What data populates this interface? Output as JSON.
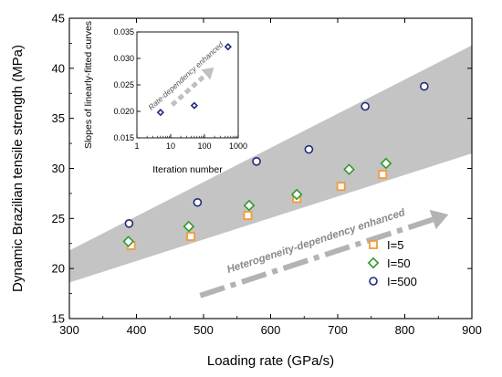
{
  "chart_data": [
    {
      "type": "scatter",
      "title": "",
      "xlabel": "Loading rate (GPa/s)",
      "ylabel": "Dynamic Brazilian tensile strength (MPa)",
      "xlim": [
        300,
        900
      ],
      "ylim": [
        15,
        45
      ],
      "x_ticks": [
        "300",
        "400",
        "500",
        "600",
        "700",
        "800",
        "900"
      ],
      "y_ticks": [
        "15",
        "20",
        "25",
        "30",
        "35",
        "40",
        "45"
      ],
      "grid": false,
      "legend_position": "bottom-right",
      "series": [
        {
          "name": "I=5",
          "marker": "square",
          "color": "#f39a3a",
          "points": [
            [
              392,
              22.3
            ],
            [
              481,
              23.2
            ],
            [
              566,
              25.3
            ],
            [
              639,
              27.0
            ],
            [
              705,
              28.2
            ],
            [
              767,
              29.4
            ]
          ]
        },
        {
          "name": "I=50",
          "marker": "diamond",
          "color": "#2f9a2f",
          "points": [
            [
              388,
              22.7
            ],
            [
              478,
              24.2
            ],
            [
              568,
              26.3
            ],
            [
              639,
              27.4
            ],
            [
              717,
              29.9
            ],
            [
              772,
              30.5
            ]
          ]
        },
        {
          "name": "I=500",
          "marker": "circle",
          "color": "#1f2a7a",
          "points": [
            [
              389,
              24.5
            ],
            [
              491,
              26.6
            ],
            [
              579,
              30.7
            ],
            [
              657,
              31.9
            ],
            [
              741,
              36.2
            ],
            [
              829,
              38.2
            ]
          ]
        }
      ],
      "band": {
        "color": "#c4c4c4",
        "upper": [
          [
            300,
            21.8
          ],
          [
            900,
            42.3
          ]
        ],
        "lower": [
          [
            300,
            18.6
          ],
          [
            900,
            31.5
          ]
        ]
      },
      "annotations": [
        {
          "text": "Heterogeneity-dependency enhanced",
          "from": [
            495,
            17.3
          ],
          "to": [
            865,
            25.4
          ]
        }
      ]
    },
    {
      "type": "scatter",
      "title": "",
      "xlabel": "Iteration number",
      "ylabel": "Slopes of linearly-fitted curves",
      "x_scale": "log",
      "xlim": [
        1,
        1000
      ],
      "ylim": [
        0.015,
        0.035
      ],
      "x_ticks": [
        "1",
        "10",
        "100",
        "1000"
      ],
      "y_ticks": [
        "0.015",
        "0.020",
        "0.025",
        "0.030",
        "0.035"
      ],
      "series": [
        {
          "name": "",
          "marker": "diamond",
          "color": "#1f2a7a",
          "points": [
            [
              5,
              0.0198
            ],
            [
              50,
              0.0211
            ],
            [
              500,
              0.0322
            ]
          ]
        }
      ],
      "annotations": [
        {
          "text": "Rate-dependency enhanced",
          "from": [
            11,
            0.0212
          ],
          "to": [
            190,
            0.0283
          ]
        }
      ]
    }
  ]
}
